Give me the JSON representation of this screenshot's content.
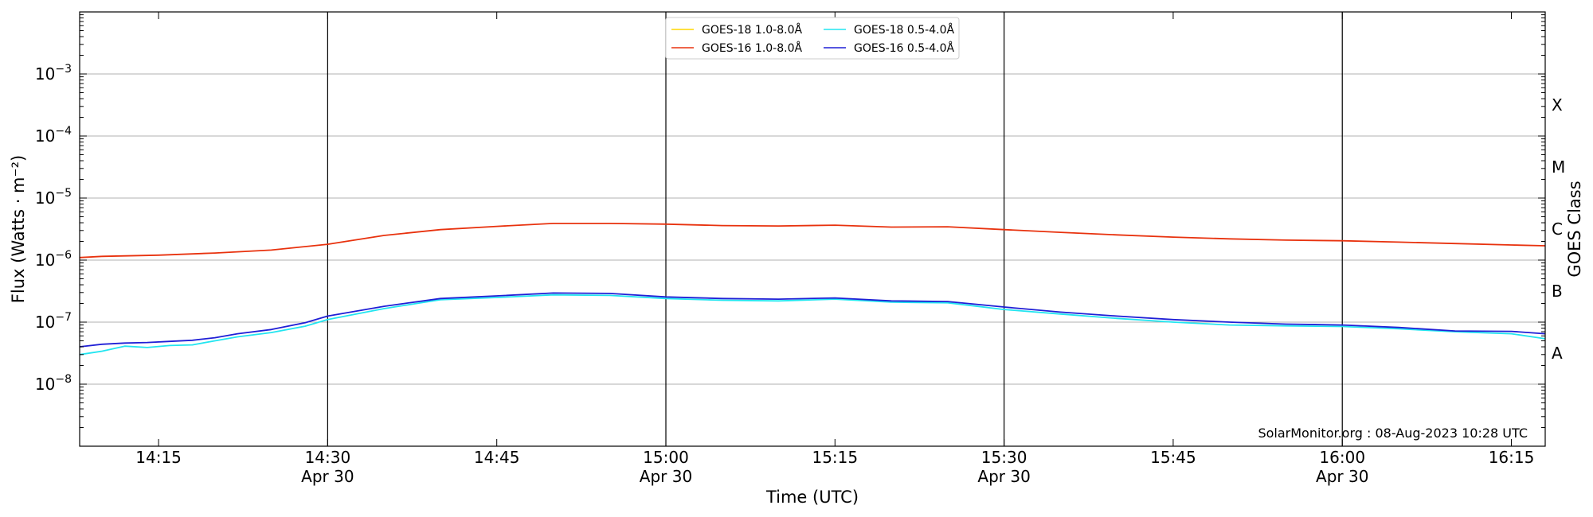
{
  "chart_data": {
    "type": "line",
    "xlabel": "Time (UTC)",
    "ylabel": "Flux (Watts · m⁻²)",
    "ylabel2": "GOES Class",
    "credit": "SolarMonitor.org : 08-Aug-2023 10:28 UTC",
    "y_scale": "log",
    "ylim": [
      1e-09,
      0.01
    ],
    "xlim": [
      "2023-04-30 14:08",
      "2023-04-30 16:18"
    ],
    "y_ticks": [
      {
        "value": 1e-08,
        "base": "10",
        "exp": "−8"
      },
      {
        "value": 1e-07,
        "base": "10",
        "exp": "−7"
      },
      {
        "value": 1e-06,
        "base": "10",
        "exp": "−6"
      },
      {
        "value": 1e-05,
        "base": "10",
        "exp": "−5"
      },
      {
        "value": 0.0001,
        "base": "10",
        "exp": "−4"
      },
      {
        "value": 0.001,
        "base": "10",
        "exp": "−3"
      }
    ],
    "x_ticks": [
      {
        "time": "2023-04-30 14:15",
        "label": "14:15",
        "sublabel": ""
      },
      {
        "time": "2023-04-30 14:30",
        "label": "14:30",
        "sublabel": "Apr 30"
      },
      {
        "time": "2023-04-30 14:45",
        "label": "14:45",
        "sublabel": ""
      },
      {
        "time": "2023-04-30 15:00",
        "label": "15:00",
        "sublabel": "Apr 30"
      },
      {
        "time": "2023-04-30 15:15",
        "label": "15:15",
        "sublabel": ""
      },
      {
        "time": "2023-04-30 15:30",
        "label": "15:30",
        "sublabel": "Apr 30"
      },
      {
        "time": "2023-04-30 15:45",
        "label": "15:45",
        "sublabel": ""
      },
      {
        "time": "2023-04-30 16:00",
        "label": "16:00",
        "sublabel": "Apr 30"
      },
      {
        "time": "2023-04-30 16:15",
        "label": "16:15",
        "sublabel": ""
      }
    ],
    "goes_classes": [
      {
        "label": "A",
        "value": 3.16e-08
      },
      {
        "label": "B",
        "value": 3.16e-07
      },
      {
        "label": "C",
        "value": 3.16e-06
      },
      {
        "label": "M",
        "value": 3.16e-05
      },
      {
        "label": "X",
        "value": 0.000316
      }
    ],
    "vlines": [
      "2023-04-30 14:30",
      "2023-04-30 15:00",
      "2023-04-30 15:30",
      "2023-04-30 16:00"
    ],
    "grid": "horizontal",
    "legend_position": "top-center",
    "series": [
      {
        "name": "GOES-18 1.0-8.0Å",
        "color": "#ffd700",
        "x": [],
        "y": []
      },
      {
        "name": "GOES-16 1.0-8.0Å",
        "color": "#e8320e",
        "x": [
          "2023-04-30 14:08",
          "2023-04-30 14:10",
          "2023-04-30 14:15",
          "2023-04-30 14:20",
          "2023-04-30 14:25",
          "2023-04-30 14:30",
          "2023-04-30 14:35",
          "2023-04-30 14:40",
          "2023-04-30 14:45",
          "2023-04-30 14:50",
          "2023-04-30 14:55",
          "2023-04-30 15:00",
          "2023-04-30 15:05",
          "2023-04-30 15:10",
          "2023-04-30 15:15",
          "2023-04-30 15:20",
          "2023-04-30 15:25",
          "2023-04-30 15:30",
          "2023-04-30 15:35",
          "2023-04-30 15:40",
          "2023-04-30 15:45",
          "2023-04-30 15:50",
          "2023-04-30 15:55",
          "2023-04-30 16:00",
          "2023-04-30 16:05",
          "2023-04-30 16:10",
          "2023-04-30 16:15",
          "2023-04-30 16:18"
        ],
        "y": [
          1.1e-06,
          1.15e-06,
          1.2e-06,
          1.3e-06,
          1.45e-06,
          1.8e-06,
          2.5e-06,
          3.1e-06,
          3.5e-06,
          3.9e-06,
          3.9e-06,
          3.8e-06,
          3.6e-06,
          3.55e-06,
          3.65e-06,
          3.4e-06,
          3.45e-06,
          3.1e-06,
          2.8e-06,
          2.55e-06,
          2.35e-06,
          2.2e-06,
          2.1e-06,
          2.05e-06,
          1.95e-06,
          1.85e-06,
          1.75e-06,
          1.7e-06
        ]
      },
      {
        "name": "GOES-18 0.5-4.0Å",
        "color": "#22e5f0",
        "x": [
          "2023-04-30 14:08",
          "2023-04-30 14:10",
          "2023-04-30 14:12",
          "2023-04-30 14:14",
          "2023-04-30 14:16",
          "2023-04-30 14:18",
          "2023-04-30 14:20",
          "2023-04-30 14:22",
          "2023-04-30 14:25",
          "2023-04-30 14:28",
          "2023-04-30 14:30",
          "2023-04-30 14:35",
          "2023-04-30 14:40",
          "2023-04-30 14:45",
          "2023-04-30 14:50",
          "2023-04-30 14:55",
          "2023-04-30 15:00",
          "2023-04-30 15:05",
          "2023-04-30 15:10",
          "2023-04-30 15:15",
          "2023-04-30 15:20",
          "2023-04-30 15:25",
          "2023-04-30 15:30",
          "2023-04-30 15:35",
          "2023-04-30 15:40",
          "2023-04-30 15:45",
          "2023-04-30 15:50",
          "2023-04-30 15:55",
          "2023-04-30 16:00",
          "2023-04-30 16:05",
          "2023-04-30 16:10",
          "2023-04-30 16:15",
          "2023-04-30 16:18"
        ],
        "y": [
          3e-08,
          3.4e-08,
          4.1e-08,
          3.9e-08,
          4.2e-08,
          4.3e-08,
          5e-08,
          5.8e-08,
          6.8e-08,
          8.6e-08,
          1.1e-07,
          1.65e-07,
          2.3e-07,
          2.5e-07,
          2.75e-07,
          2.7e-07,
          2.4e-07,
          2.25e-07,
          2.2e-07,
          2.35e-07,
          2.1e-07,
          2.05e-07,
          1.6e-07,
          1.35e-07,
          1.15e-07,
          1e-07,
          9e-08,
          8.7e-08,
          8.5e-08,
          7.8e-08,
          7e-08,
          6.5e-08,
          5.4e-08
        ]
      },
      {
        "name": "GOES-16 0.5-4.0Å",
        "color": "#1f1fd6",
        "x": [
          "2023-04-30 14:08",
          "2023-04-30 14:10",
          "2023-04-30 14:12",
          "2023-04-30 14:14",
          "2023-04-30 14:16",
          "2023-04-30 14:18",
          "2023-04-30 14:20",
          "2023-04-30 14:22",
          "2023-04-30 14:25",
          "2023-04-30 14:28",
          "2023-04-30 14:30",
          "2023-04-30 14:35",
          "2023-04-30 14:40",
          "2023-04-30 14:45",
          "2023-04-30 14:50",
          "2023-04-30 14:55",
          "2023-04-30 15:00",
          "2023-04-30 15:05",
          "2023-04-30 15:10",
          "2023-04-30 15:15",
          "2023-04-30 15:20",
          "2023-04-30 15:25",
          "2023-04-30 15:30",
          "2023-04-30 15:35",
          "2023-04-30 15:40",
          "2023-04-30 15:45",
          "2023-04-30 15:50",
          "2023-04-30 15:55",
          "2023-04-30 16:00",
          "2023-04-30 16:05",
          "2023-04-30 16:10",
          "2023-04-30 16:15",
          "2023-04-30 16:18"
        ],
        "y": [
          4e-08,
          4.4e-08,
          4.6e-08,
          4.7e-08,
          4.9e-08,
          5.1e-08,
          5.6e-08,
          6.5e-08,
          7.6e-08,
          9.8e-08,
          1.25e-07,
          1.8e-07,
          2.4e-07,
          2.65e-07,
          2.95e-07,
          2.9e-07,
          2.55e-07,
          2.4e-07,
          2.35e-07,
          2.45e-07,
          2.2e-07,
          2.15e-07,
          1.75e-07,
          1.45e-07,
          1.25e-07,
          1.1e-07,
          1e-07,
          9.3e-08,
          9e-08,
          8.2e-08,
          7.2e-08,
          7.1e-08,
          6.5e-08
        ]
      }
    ]
  }
}
